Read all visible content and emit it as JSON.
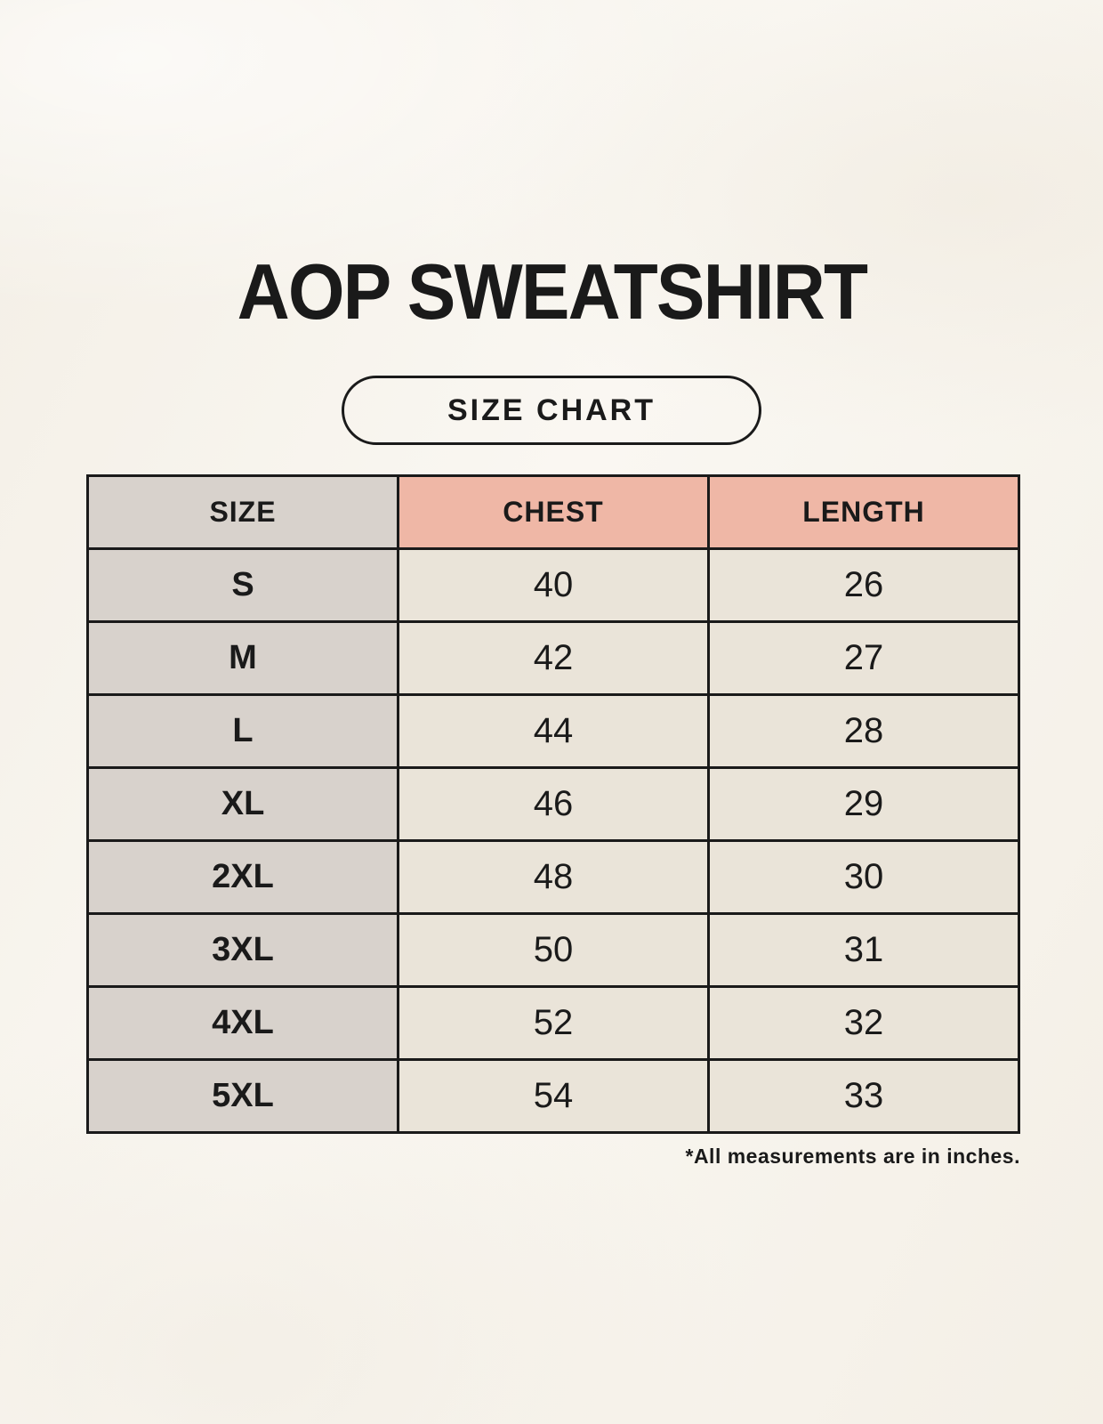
{
  "page": {
    "title": "AOP SWEATSHIRT",
    "badge_label": "SIZE CHART"
  },
  "colors": {
    "background": "#f7f3eb",
    "table_gray": "#d8d2cc",
    "table_pink": "#efb7a6",
    "table_cream": "#eae4d9",
    "line": "#1a1a1a",
    "ink": "#1a1a1a"
  },
  "chart_data": {
    "type": "table",
    "title": "AOP SWEATSHIRT",
    "subtitle": "SIZE CHART",
    "columns": [
      "SIZE",
      "CHEST",
      "LENGTH"
    ],
    "rows": [
      [
        "S",
        40,
        26
      ],
      [
        "M",
        42,
        27
      ],
      [
        "L",
        44,
        28
      ],
      [
        "XL",
        46,
        29
      ],
      [
        "2XL",
        48,
        30
      ],
      [
        "3XL",
        50,
        31
      ],
      [
        "4XL",
        52,
        32
      ],
      [
        "5XL",
        54,
        33
      ]
    ],
    "units": "inches",
    "footnote": "*All measurements are in inches."
  }
}
